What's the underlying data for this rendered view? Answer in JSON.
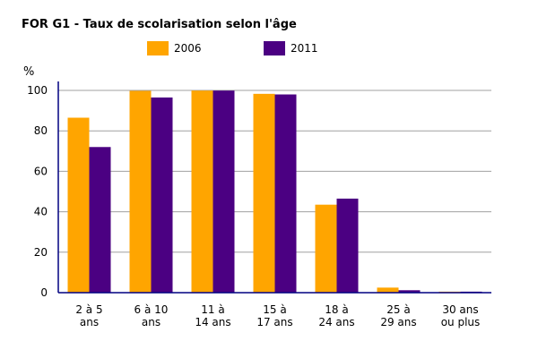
{
  "chart_data": {
    "type": "bar",
    "title": "FOR G1 - Taux de scolarisation selon l'âge",
    "ylabel": "%",
    "xlabel": "",
    "ylim": [
      0,
      100
    ],
    "yticks": [
      0,
      20,
      40,
      60,
      80,
      100
    ],
    "grid": true,
    "legend_position": "top",
    "categories": [
      [
        "2 à 5",
        "ans"
      ],
      [
        "6 à 10",
        "ans"
      ],
      [
        "11 à",
        "14 ans"
      ],
      [
        "15 à",
        "17 ans"
      ],
      [
        "18 à",
        "24 ans"
      ],
      [
        "25 à",
        "29 ans"
      ],
      [
        "30 ans",
        "ou plus"
      ]
    ],
    "series": [
      {
        "name": "2006",
        "color": "#FFA500",
        "values": [
          86.5,
          99.8,
          99.9,
          98.3,
          43.5,
          2.5,
          0.5
        ]
      },
      {
        "name": "2011",
        "color": "#4B0082",
        "values": [
          72.0,
          96.5,
          99.9,
          98.0,
          46.5,
          1.2,
          0.5
        ]
      }
    ]
  }
}
